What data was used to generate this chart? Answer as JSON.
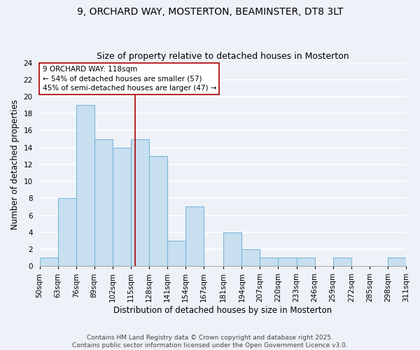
{
  "title_line1": "9, ORCHARD WAY, MOSTERTON, BEAMINSTER, DT8 3LT",
  "title_line2": "Size of property relative to detached houses in Mosterton",
  "xlabel": "Distribution of detached houses by size in Mosterton",
  "ylabel": "Number of detached properties",
  "bin_edges": [
    50,
    63,
    76,
    89,
    102,
    115,
    128,
    141,
    154,
    167,
    181,
    194,
    207,
    220,
    233,
    246,
    259,
    272,
    285,
    298,
    311
  ],
  "counts": [
    1,
    8,
    19,
    15,
    14,
    15,
    13,
    3,
    7,
    0,
    4,
    2,
    1,
    1,
    1,
    0,
    1,
    0,
    0,
    1
  ],
  "bar_color": "#c8dff0",
  "bar_edge_color": "#7ab5d8",
  "property_size": 118,
  "vline_color": "#aa0000",
  "annotation_line1": "9 ORCHARD WAY: 118sqm",
  "annotation_line2": "← 54% of detached houses are smaller (57)",
  "annotation_line3": "45% of semi-detached houses are larger (47) →",
  "annotation_box_color": "#ffffff",
  "annotation_box_edge": "#aa0000",
  "ylim": [
    0,
    24
  ],
  "yticks": [
    0,
    2,
    4,
    6,
    8,
    10,
    12,
    14,
    16,
    18,
    20,
    22,
    24
  ],
  "footer_line1": "Contains HM Land Registry data © Crown copyright and database right 2025.",
  "footer_line2": "Contains public sector information licensed under the Open Government Licence v3.0.",
  "background_color": "#eef2f8",
  "grid_color": "#ffffff",
  "title_fontsize": 10,
  "subtitle_fontsize": 9,
  "axis_label_fontsize": 8.5,
  "tick_fontsize": 7.5,
  "footer_fontsize": 6.5,
  "annotation_fontsize": 7.5
}
